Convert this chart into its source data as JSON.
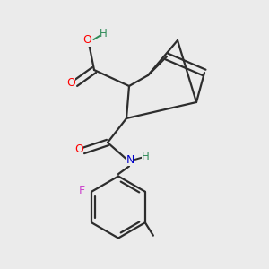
{
  "background_color": "#ebebeb",
  "bond_color": "#2d2d2d",
  "atom_colors": {
    "O": "#ff0000",
    "N": "#0000cd",
    "F": "#cc44cc",
    "H_OH": "#2e8b57",
    "C": "#2d2d2d"
  },
  "figsize": [
    3.0,
    3.0
  ],
  "dpi": 100
}
